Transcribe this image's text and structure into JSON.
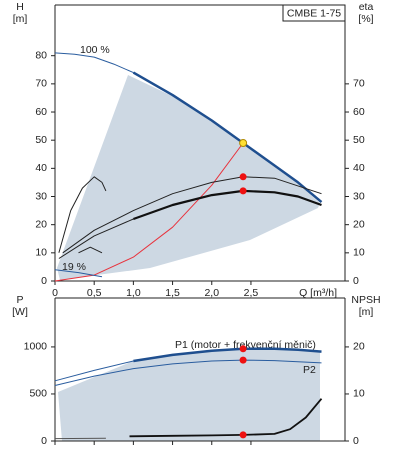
{
  "chart_data": [
    {
      "type": "line",
      "title": "CMBE 1-75",
      "ylabel": "H",
      "yunit": "[m]",
      "y2label": "eta",
      "y2unit": "[%]",
      "xlabel": "Q [m³/h]",
      "annotations": [
        "100 %",
        "19 %"
      ],
      "xlim": [
        0,
        3.7
      ],
      "ylim": [
        0,
        98
      ],
      "y2lim": [
        0,
        98
      ],
      "xticks": [
        0,
        {
          "value": 0.5,
          "label": "0,5"
        },
        {
          "value": 1,
          "label": "1,0"
        },
        {
          "value": 1.5,
          "label": "1,5"
        },
        {
          "value": 2,
          "label": "2,0"
        },
        {
          "value": 2.5,
          "label": "2,5"
        }
      ],
      "yticks": [
        0,
        10,
        20,
        30,
        40,
        50,
        60,
        70,
        80
      ],
      "y2ticks": [
        0,
        10,
        20,
        30,
        40,
        50,
        60,
        70
      ],
      "series": [
        {
          "color": "#2a5d9f",
          "width": 1,
          "x": [
            0,
            0.25,
            0.5,
            0.75,
            1.0
          ],
          "values": [
            81,
            80.5,
            79.5,
            77,
            74
          ]
        },
        {
          "color": "#1f4f8f",
          "width": 2.5,
          "x": [
            1.0,
            1.5,
            2.0,
            2.4,
            2.8,
            3.1,
            3.4
          ],
          "values": [
            74,
            66,
            57,
            49,
            41,
            35,
            28
          ]
        },
        {
          "color": "#e8323c",
          "width": 1,
          "x": [
            0,
            0.5,
            1,
            1.5,
            2,
            2.4
          ],
          "values": [
            0,
            2.1,
            8.5,
            19.1,
            34,
            49
          ]
        },
        {
          "color": "#222222",
          "width": 1,
          "axis": "y2",
          "x": [
            0.1,
            0.5,
            1,
            1.5,
            2,
            2.4,
            2.8,
            3.4
          ],
          "values": [
            10,
            18,
            25,
            31,
            35,
            37,
            36.5,
            31
          ]
        },
        {
          "color": "#222222",
          "width": 1,
          "axis": "y2",
          "x": [
            0.05,
            0.5,
            1.0
          ],
          "values": [
            8,
            16,
            22
          ]
        },
        {
          "color": "#111111",
          "width": 2.2,
          "axis": "y2",
          "x": [
            1.0,
            1.5,
            2.0,
            2.4,
            2.8,
            3.1,
            3.4
          ],
          "values": [
            22,
            27,
            30.5,
            32,
            31.5,
            30,
            27
          ]
        },
        {
          "color": "#222222",
          "width": 1,
          "x": [
            0.05,
            0.2,
            0.35,
            0.5,
            0.6,
            0.65
          ],
          "values": [
            10,
            25,
            33,
            37,
            35,
            32
          ]
        },
        {
          "color": "#222222",
          "width": 1,
          "x": [
            0.3,
            0.45,
            0.6
          ],
          "values": [
            10,
            12,
            10
          ]
        },
        {
          "color": "#2a5d9f",
          "width": 1,
          "x": [
            0,
            0.3,
            0.6
          ],
          "values": [
            4,
            3,
            1.5
          ]
        },
        {
          "color": "#ffe033",
          "style": "points",
          "x": [
            2.4
          ],
          "values": [
            49
          ]
        },
        {
          "color": "#ee1111",
          "style": "points",
          "axis": "y2",
          "x": [
            2.4,
            2.4
          ],
          "values": [
            37,
            32
          ]
        }
      ]
    },
    {
      "type": "line",
      "ylabel": "P",
      "yunit": "[W]",
      "y2label": "NPSH",
      "y2unit": "[m]",
      "annotations": [
        "P1 (motor + frekvenční měnič)",
        "P2"
      ],
      "xlim": [
        0,
        3.7
      ],
      "ylim": [
        0,
        1520
      ],
      "y2lim": [
        0,
        30.4
      ],
      "yticks": [
        0,
        500,
        1000
      ],
      "y2ticks": [
        0,
        10,
        20
      ],
      "series": [
        {
          "color": "#2a5d9f",
          "width": 1,
          "x": [
            0,
            0.5,
            1.0
          ],
          "values": [
            640,
            750,
            850
          ]
        },
        {
          "color": "#1f4f8f",
          "width": 2.5,
          "x": [
            1.0,
            1.5,
            2.0,
            2.4,
            2.8,
            3.1,
            3.4
          ],
          "values": [
            850,
            915,
            960,
            980,
            980,
            970,
            950
          ]
        },
        {
          "color": "#2a5d9f",
          "width": 1,
          "x": [
            0,
            0.5,
            1,
            1.5,
            2,
            2.4,
            2.8,
            3.4
          ],
          "values": [
            590,
            690,
            770,
            820,
            850,
            860,
            855,
            830
          ]
        },
        {
          "color": "#111111",
          "width": 1.8,
          "axis": "y2",
          "x": [
            0.95,
            1.5,
            2.0,
            2.4,
            2.8,
            3.0,
            3.2,
            3.4
          ],
          "values": [
            1.0,
            1.1,
            1.2,
            1.3,
            1.5,
            2.5,
            5,
            9
          ]
        },
        {
          "color": "#555555",
          "width": 1,
          "axis": "y2",
          "x": [
            0,
            0.65
          ],
          "values": [
            0.5,
            0.6
          ]
        },
        {
          "color": "#ee1111",
          "style": "points",
          "x": [
            2.4,
            2.4
          ],
          "values": [
            980,
            860
          ]
        },
        {
          "color": "#ee1111",
          "style": "points",
          "axis": "y2",
          "x": [
            2.4
          ],
          "values": [
            1.3
          ]
        }
      ]
    }
  ]
}
